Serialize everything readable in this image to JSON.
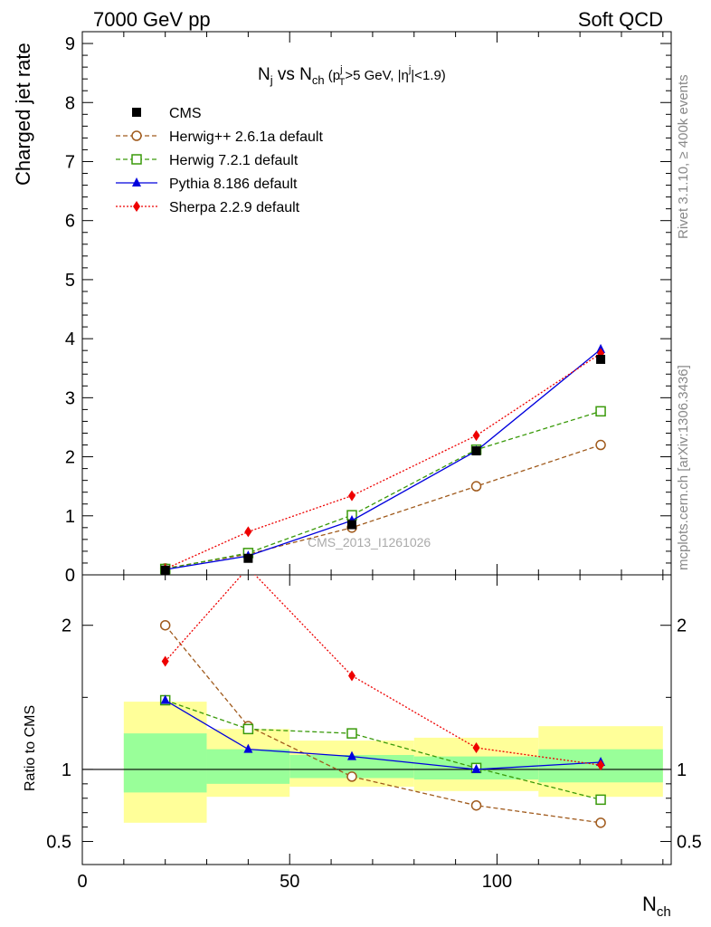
{
  "header": {
    "energy_label": "7000 GeV pp",
    "process_label": "Soft QCD"
  },
  "side_labels": {
    "rivet": "Rivet 3.1.10, ≥ 400k events",
    "mcplots": "mcplots.cern.ch [arXiv:1306.3436]"
  },
  "watermark": "CMS_2013_I1261026",
  "plot_title": {
    "main": "N",
    "sub_j": "j",
    "vs": " vs N",
    "sub_ch": "ch",
    "cut_open": " (p",
    "sup_j": "j",
    "sub_T": "T",
    "cut_mid": ">5 GeV, |η",
    "sup_j2": "j",
    "cut_close": "|<1.9)"
  },
  "axes": {
    "ylabel_top": "Charged jet rate",
    "ylabel_ratio": "Ratio to CMS",
    "xlabel_main": "N",
    "xlabel_sub": "ch"
  },
  "chart_data": [
    {
      "type": "line",
      "panel": "main",
      "xlim": [
        0,
        142
      ],
      "ylim": [
        0,
        9.2
      ],
      "y_ticks": [
        0,
        1,
        2,
        3,
        4,
        5,
        6,
        7,
        8,
        9
      ],
      "legend_position": "top-left",
      "series": [
        {
          "name": "CMS",
          "style": "data",
          "color": "#000000",
          "x": [
            20,
            40,
            65,
            95,
            125
          ],
          "y": [
            0.08,
            0.28,
            0.85,
            2.1,
            3.65
          ]
        },
        {
          "name": "Herwig++ 2.6.1a default",
          "style": "dashed",
          "marker": "circle-open",
          "color": "#a05a1c",
          "x": [
            20,
            40,
            65,
            95,
            125
          ],
          "y": [
            0.11,
            0.35,
            0.8,
            1.5,
            2.2
          ]
        },
        {
          "name": "Herwig 7.2.1 default",
          "style": "dashed",
          "marker": "square-open",
          "color": "#3a9a0a",
          "x": [
            20,
            40,
            65,
            95,
            125
          ],
          "y": [
            0.1,
            0.37,
            1.01,
            2.12,
            2.77
          ]
        },
        {
          "name": "Pythia 8.186 default",
          "style": "solid",
          "marker": "triangle",
          "color": "#0000dd",
          "x": [
            20,
            40,
            65,
            95,
            125
          ],
          "y": [
            0.09,
            0.32,
            0.92,
            2.1,
            3.82
          ]
        },
        {
          "name": "Sherpa 2.2.9 default",
          "style": "dotted",
          "marker": "diamond",
          "color": "#ee0000",
          "x": [
            20,
            40,
            65,
            95,
            125
          ],
          "y": [
            0.1,
            0.73,
            1.34,
            2.36,
            3.75
          ]
        }
      ]
    },
    {
      "type": "line",
      "panel": "ratio",
      "xlim": [
        0,
        142
      ],
      "ylim": [
        0.34,
        2.35
      ],
      "y_ticks": [
        0.5,
        1,
        2
      ],
      "x_ticks": [
        0,
        50,
        100
      ],
      "reference_line": 1,
      "uncertainty_bands": [
        {
          "x_low": 10,
          "x_high": 30,
          "stat_low": 0.84,
          "stat_high": 1.25,
          "total_low": 0.63,
          "total_high": 1.47
        },
        {
          "x_low": 30,
          "x_high": 50,
          "stat_low": 0.9,
          "stat_high": 1.14,
          "total_low": 0.81,
          "total_high": 1.28
        },
        {
          "x_low": 50,
          "x_high": 80,
          "stat_low": 0.94,
          "stat_high": 1.1,
          "total_low": 0.88,
          "total_high": 1.2
        },
        {
          "x_low": 80,
          "x_high": 110,
          "stat_low": 0.93,
          "stat_high": 1.09,
          "total_low": 0.85,
          "total_high": 1.22
        },
        {
          "x_low": 110,
          "x_high": 140,
          "stat_low": 0.91,
          "stat_high": 1.14,
          "total_low": 0.81,
          "total_high": 1.3
        }
      ],
      "series": [
        {
          "name": "Herwig++ 2.6.1a default",
          "style": "dashed",
          "marker": "circle-open",
          "color": "#a05a1c",
          "x": [
            20,
            40,
            65,
            95,
            125
          ],
          "y": [
            2.0,
            1.3,
            0.95,
            0.75,
            0.63
          ]
        },
        {
          "name": "Herwig 7.2.1 default",
          "style": "dashed",
          "marker": "square-open",
          "color": "#3a9a0a",
          "x": [
            20,
            40,
            65,
            95,
            125
          ],
          "y": [
            1.48,
            1.28,
            1.25,
            1.01,
            0.79
          ]
        },
        {
          "name": "Pythia 8.186 default",
          "style": "solid",
          "marker": "triangle",
          "color": "#0000dd",
          "x": [
            20,
            40,
            65,
            95,
            125
          ],
          "y": [
            1.48,
            1.14,
            1.09,
            1.0,
            1.05
          ]
        },
        {
          "name": "Sherpa 2.2.9 default",
          "style": "dotted",
          "marker": "diamond",
          "color": "#ee0000",
          "x": [
            20,
            40,
            65,
            95,
            125
          ],
          "y": [
            1.75,
            2.4,
            1.65,
            1.15,
            1.03
          ]
        }
      ]
    }
  ]
}
